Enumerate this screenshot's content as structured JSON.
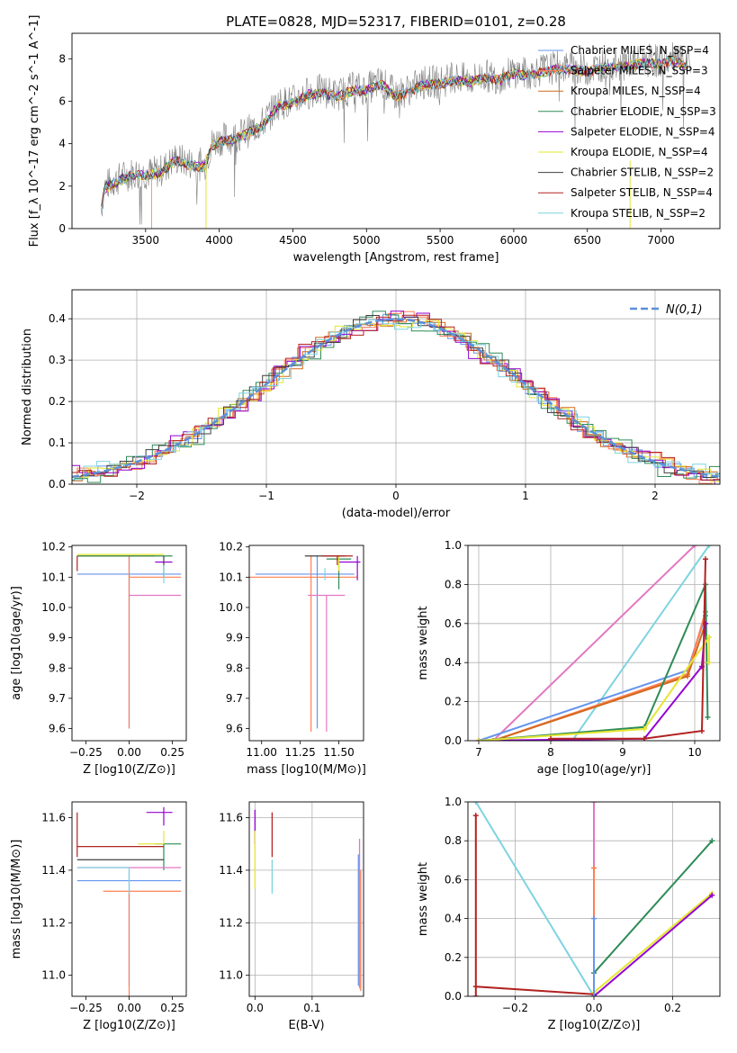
{
  "title": "PLATE=0828, MJD=52317, FIBERID=0101, z=0.28",
  "legend_colors": [
    "#6495ed",
    "#ff7f50",
    "#d2691e",
    "#2e8b57",
    "#9400d3",
    "#e6e632",
    "#404040",
    "#b22222",
    "#7ed3e0"
  ],
  "chart_data": [
    {
      "id": "spectrum",
      "type": "line",
      "xlabel": "wavelength [Angstrom, rest frame]",
      "ylabel": "Flux [f_λ 10^-17 erg cm^-2 s^-1 A^-1]",
      "xlim": [
        3000,
        7400
      ],
      "ylim": [
        0,
        9.2
      ],
      "xticks": [
        3500,
        4000,
        4500,
        5000,
        5500,
        6000,
        6500,
        7000
      ],
      "yticks": [
        0,
        2,
        4,
        6,
        8
      ],
      "data_color": "#808080",
      "data_points": [
        [
          3200,
          1.0
        ],
        [
          3220,
          2.0
        ],
        [
          3300,
          2.3
        ],
        [
          3400,
          2.6
        ],
        [
          3500,
          2.6
        ],
        [
          3600,
          2.7
        ],
        [
          3700,
          3.3
        ],
        [
          3800,
          3.1
        ],
        [
          3900,
          3.0
        ],
        [
          3950,
          4.0
        ],
        [
          4000,
          4.2
        ],
        [
          4100,
          4.3
        ],
        [
          4200,
          4.6
        ],
        [
          4300,
          5.0
        ],
        [
          4400,
          5.9
        ],
        [
          4500,
          6.0
        ],
        [
          4600,
          6.4
        ],
        [
          4700,
          6.5
        ],
        [
          4800,
          6.3
        ],
        [
          4900,
          6.6
        ],
        [
          5000,
          6.6
        ],
        [
          5100,
          6.9
        ],
        [
          5200,
          6.3
        ],
        [
          5300,
          6.6
        ],
        [
          5400,
          6.9
        ],
        [
          5500,
          6.9
        ],
        [
          5600,
          7.1
        ],
        [
          5700,
          7.0
        ],
        [
          5800,
          7.2
        ],
        [
          5900,
          7.1
        ],
        [
          6000,
          7.4
        ],
        [
          6100,
          7.3
        ],
        [
          6200,
          7.5
        ],
        [
          6300,
          7.6
        ],
        [
          6400,
          7.6
        ],
        [
          6500,
          7.5
        ],
        [
          6600,
          7.7
        ],
        [
          6700,
          7.7
        ],
        [
          6800,
          7.8
        ],
        [
          6900,
          7.9
        ],
        [
          7000,
          7.9
        ],
        [
          7100,
          8.0
        ],
        [
          7200,
          7.7
        ]
      ],
      "series": [
        {
          "name": "Chabrier MILES, N_SSP=4",
          "color": "#6495ed"
        },
        {
          "name": "Salpeter MILES, N_SSP=3",
          "color": "#ff7f50"
        },
        {
          "name": "Kroupa MILES, N_SSP=4",
          "color": "#d2691e"
        },
        {
          "name": "Chabrier ELODIE, N_SSP=3",
          "color": "#2e8b57"
        },
        {
          "name": "Salpeter ELODIE, N_SSP=4",
          "color": "#9400d3"
        },
        {
          "name": "Kroupa ELODIE, N_SSP=4",
          "color": "#e6e632"
        },
        {
          "name": "Chabrier STELIB, N_SSP=2",
          "color": "#404040"
        },
        {
          "name": "Salpeter STELIB, N_SSP=4",
          "color": "#b22222"
        },
        {
          "name": "Kroupa STELIB, N_SSP=2",
          "color": "#7ed3e0"
        }
      ]
    },
    {
      "id": "residuals",
      "type": "line",
      "xlabel": "(data-model)/error",
      "ylabel": "Normed distribution",
      "xlim": [
        -2.5,
        2.5
      ],
      "ylim": [
        0,
        0.47
      ],
      "xticks": [
        -2,
        -1,
        0,
        1,
        2
      ],
      "yticks": [
        0.0,
        0.1,
        0.2,
        0.3,
        0.4
      ],
      "grid": true,
      "legend": "N(0,1)",
      "legend_position": "top-right",
      "bin_width": 0.1,
      "hist_offsets": [
        0.0,
        0.012,
        -0.01,
        0.018,
        -0.016,
        0.007,
        -0.006,
        0.014,
        -0.013
      ],
      "hist_phases": [
        0.0,
        0.04,
        0.08,
        0.02,
        0.06,
        0.03,
        0.07,
        0.05,
        0.09
      ]
    },
    {
      "id": "age-vs-Z",
      "type": "scatter",
      "xlabel": "Z [log10(Z/Z⊙)]",
      "ylabel": "age  [log10(age/yr)]",
      "xlim": [
        -0.33,
        0.33
      ],
      "ylim": [
        9.56,
        10.205
      ],
      "xticks": [
        -0.25,
        0.0,
        0.25
      ],
      "yticks": [
        9.6,
        9.7,
        9.8,
        9.9,
        10.0,
        10.1,
        10.2
      ],
      "points": [
        {
          "x": 0.0,
          "y": 10.11,
          "xerr": [
            0.3,
            0.3
          ],
          "yerr": [
            0.51,
            0.06
          ],
          "color": "#6495ed"
        },
        {
          "x": 0.0,
          "y": 10.1,
          "xerr": [
            0.0,
            0.3
          ],
          "yerr": [
            0.5,
            0.07
          ],
          "color": "#ff7f50"
        },
        {
          "x": -0.1,
          "y": 10.17,
          "xerr": [
            0.2,
            0.25
          ],
          "yerr": [
            0.0,
            0.0
          ],
          "color": "#d2691e"
        },
        {
          "x": 0.0,
          "y": 10.17,
          "xerr": [
            0.3,
            0.25
          ],
          "yerr": [
            0.0,
            0.0
          ],
          "color": "#2e8b57"
        },
        {
          "x": 0.2,
          "y": 10.15,
          "xerr": [
            0.05,
            0.05
          ],
          "yerr": [
            0.0,
            0.0
          ],
          "color": "#9400d3"
        },
        {
          "x": 0.0,
          "y": 10.175,
          "xerr": [
            0.3,
            0.2
          ],
          "yerr": [
            0.0,
            0.0
          ],
          "color": "#e6e632"
        },
        {
          "x": 0.2,
          "y": 10.1,
          "xerr": [
            0.0,
            0.0
          ],
          "yerr": [
            0.0,
            0.07
          ],
          "color": "#404040"
        },
        {
          "x": -0.3,
          "y": 10.17,
          "xerr": [
            0.0,
            0.0
          ],
          "yerr": [
            0.05,
            0.0
          ],
          "color": "#b22222"
        },
        {
          "x": 0.0,
          "y": 10.04,
          "xerr": [
            0.0,
            0.3
          ],
          "yerr": [
            0.0,
            0.0
          ],
          "color": "#e377c2"
        },
        {
          "x": 0.2,
          "y": 10.11,
          "xerr": [
            0.0,
            0.0
          ],
          "yerr": [
            0.03,
            0.03
          ],
          "color": "#7ed3e0"
        }
      ]
    },
    {
      "id": "age-vs-mass",
      "type": "scatter",
      "xlabel": "mass [log10(M/M⊙)]",
      "ylabel": "",
      "xlim": [
        10.92,
        11.66
      ],
      "ylim": [
        9.56,
        10.205
      ],
      "xticks": [
        11.0,
        11.25,
        11.5
      ],
      "yticks": [
        9.6,
        9.7,
        9.8,
        9.9,
        10.0,
        10.1,
        10.2
      ],
      "points": [
        {
          "x": 11.36,
          "y": 10.11,
          "xerr": [
            0.4,
            0.24
          ],
          "yerr": [
            0.51,
            0.06
          ],
          "color": "#6495ed"
        },
        {
          "x": 11.32,
          "y": 10.1,
          "xerr": [
            0.4,
            0.3
          ],
          "yerr": [
            0.51,
            0.07
          ],
          "color": "#ff7f50"
        },
        {
          "x": 11.5,
          "y": 10.16,
          "xerr": [
            0.08,
            0.08
          ],
          "yerr": [
            0.1,
            0.0
          ],
          "color": "#2e8b57"
        },
        {
          "x": 11.62,
          "y": 10.15,
          "xerr": [
            0.12,
            0.02
          ],
          "yerr": [
            0.06,
            0.02
          ],
          "color": "#9400d3"
        },
        {
          "x": 11.5,
          "y": 10.17,
          "xerr": [
            0.05,
            0.05
          ],
          "yerr": [
            0.05,
            0.0
          ],
          "color": "#e6e632"
        },
        {
          "x": 11.44,
          "y": 10.17,
          "xerr": [
            0.16,
            0.1
          ],
          "yerr": [
            0.0,
            0.0
          ],
          "color": "#404040"
        },
        {
          "x": 11.49,
          "y": 10.17,
          "xerr": [
            0.1,
            0.1
          ],
          "yerr": [
            0.03,
            0.0
          ],
          "color": "#b22222"
        },
        {
          "x": 11.42,
          "y": 10.04,
          "xerr": [
            0.12,
            0.12
          ],
          "yerr": [
            0.45,
            0.0
          ],
          "color": "#e377c2"
        },
        {
          "x": 11.41,
          "y": 10.11,
          "xerr": [
            0.0,
            0.0
          ],
          "yerr": [
            0.02,
            0.02
          ],
          "color": "#7ed3e0"
        }
      ]
    },
    {
      "id": "weight-vs-age",
      "type": "line",
      "xlabel": "age  [log10(age/yr)]",
      "ylabel": "mass weight",
      "xlim": [
        6.85,
        10.35
      ],
      "ylim": [
        0,
        1.0
      ],
      "xticks": [
        7,
        8,
        9,
        10
      ],
      "yticks": [
        0.0,
        0.2,
        0.4,
        0.6,
        0.8,
        1.0
      ],
      "grid": true,
      "lines": [
        {
          "color": "#e377c2",
          "pts": [
            [
              7.2,
              0.0
            ],
            [
              10.0,
              1.0
            ]
          ]
        },
        {
          "color": "#7ed3e0",
          "pts": [
            [
              8.3,
              0.0
            ],
            [
              10.2,
              1.0
            ]
          ]
        },
        {
          "color": "#6495ed",
          "pts": [
            [
              7.0,
              0.0
            ],
            [
              9.9,
              0.36
            ],
            [
              10.15,
              0.64
            ]
          ]
        },
        {
          "color": "#ff7f50",
          "pts": [
            [
              7.2,
              0.0
            ],
            [
              9.9,
              0.34
            ],
            [
              10.15,
              0.66
            ]
          ]
        },
        {
          "color": "#d2691e",
          "pts": [
            [
              7.2,
              0.0
            ],
            [
              9.9,
              0.33
            ],
            [
              10.15,
              0.6
            ]
          ]
        },
        {
          "color": "#2e8b57",
          "pts": [
            [
              7.0,
              0.0
            ],
            [
              9.3,
              0.07
            ],
            [
              10.15,
              0.8
            ],
            [
              10.18,
              0.12
            ]
          ]
        },
        {
          "color": "#9400d3",
          "pts": [
            [
              7.0,
              0.0
            ],
            [
              9.3,
              0.01
            ],
            [
              10.1,
              0.38
            ],
            [
              10.15,
              0.6
            ]
          ]
        },
        {
          "color": "#e6e632",
          "pts": [
            [
              7.0,
              0.0
            ],
            [
              9.3,
              0.06
            ],
            [
              10.2,
              0.53
            ],
            [
              10.2,
              0.4
            ]
          ]
        },
        {
          "color": "#b22222",
          "pts": [
            [
              8.0,
              0.01
            ],
            [
              9.3,
              0.01
            ],
            [
              10.1,
              0.05
            ],
            [
              10.15,
              0.93
            ]
          ]
        }
      ]
    },
    {
      "id": "mass-vs-Z",
      "type": "scatter",
      "xlabel": "Z [log10(Z/Z⊙)]",
      "ylabel": "mass [log10(M/M⊙)]",
      "xlim": [
        -0.33,
        0.33
      ],
      "ylim": [
        10.92,
        11.66
      ],
      "xticks": [
        -0.25,
        0.0,
        0.25
      ],
      "yticks": [
        11.0,
        11.2,
        11.4,
        11.6
      ],
      "points": [
        {
          "x": 0.0,
          "y": 11.36,
          "xerr": [
            0.3,
            0.3
          ],
          "yerr": [
            0.4,
            0.04
          ],
          "color": "#6495ed"
        },
        {
          "x": 0.0,
          "y": 11.32,
          "xerr": [
            0.15,
            0.3
          ],
          "yerr": [
            0.4,
            0.0
          ],
          "color": "#ff7f50"
        },
        {
          "x": 0.2,
          "y": 11.5,
          "xerr": [
            0.05,
            0.1
          ],
          "yerr": [
            0.1,
            0.0
          ],
          "color": "#2e8b57"
        },
        {
          "x": 0.2,
          "y": 11.62,
          "xerr": [
            0.1,
            0.05
          ],
          "yerr": [
            0.05,
            0.02
          ],
          "color": "#9400d3"
        },
        {
          "x": 0.2,
          "y": 11.5,
          "xerr": [
            0.15,
            0.0
          ],
          "yerr": [
            0.0,
            0.05
          ],
          "color": "#e6e632"
        },
        {
          "x": 0.0,
          "y": 11.44,
          "xerr": [
            0.3,
            0.2
          ],
          "yerr": [
            0.0,
            0.0
          ],
          "color": "#404040"
        },
        {
          "x": -0.3,
          "y": 11.49,
          "xerr": [
            0.0,
            0.5
          ],
          "yerr": [
            0.04,
            0.13
          ],
          "color": "#b22222"
        },
        {
          "x": 0.0,
          "y": 11.41,
          "xerr": [
            0.3,
            0.3
          ],
          "yerr": [
            0.0,
            0.0
          ],
          "color": "#e377c2"
        },
        {
          "x": 0.0,
          "y": 11.41,
          "xerr": [
            0.3,
            0.0
          ],
          "yerr": [
            0.1,
            0.0
          ],
          "color": "#7ed3e0"
        }
      ]
    },
    {
      "id": "mass-vs-EBV",
      "type": "scatter",
      "xlabel": "E(B-V)",
      "ylabel": "",
      "xlim": [
        -0.01,
        0.19
      ],
      "ylim": [
        10.92,
        11.66
      ],
      "xticks": [
        0.0,
        0.1
      ],
      "yticks": [
        11.0,
        11.2,
        11.4,
        11.6
      ],
      "grid": true,
      "vlines": [
        {
          "x": 0.0,
          "y0": 11.5,
          "y1": 11.63,
          "color": "#9400d3"
        },
        {
          "x": 0.0,
          "y0": 11.33,
          "y1": 11.55,
          "color": "#e6e632"
        },
        {
          "x": 0.03,
          "y0": 11.45,
          "y1": 11.62,
          "color": "#b22222"
        },
        {
          "x": 0.03,
          "y0": 11.31,
          "y1": 11.44,
          "color": "#7ed3e0"
        },
        {
          "x": 0.181,
          "y0": 10.96,
          "y1": 11.46,
          "color": "#6495ed"
        },
        {
          "x": 0.183,
          "y0": 10.95,
          "y1": 11.52,
          "color": "#e377c2"
        },
        {
          "x": 0.185,
          "y0": 10.94,
          "y1": 11.4,
          "color": "#ff7f50"
        }
      ]
    },
    {
      "id": "weight-vs-Z",
      "type": "line",
      "xlabel": "Z [log10(Z/Z⊙)]",
      "ylabel": "mass weight",
      "xlim": [
        -0.32,
        0.32
      ],
      "ylim": [
        0,
        1.0
      ],
      "xticks": [
        -0.2,
        0.0,
        0.2
      ],
      "yticks": [
        0.0,
        0.2,
        0.4,
        0.6,
        0.8,
        1.0
      ],
      "grid": true,
      "lines": [
        {
          "color": "#7ed3e0",
          "pts": [
            [
              -0.3,
              1.0
            ],
            [
              0.0,
              0.0
            ]
          ]
        },
        {
          "color": "#b22222",
          "pts": [
            [
              -0.3,
              0.93
            ],
            [
              -0.3,
              0.0
            ],
            [
              -0.3,
              0.05
            ],
            [
              0.0,
              0.01
            ]
          ]
        },
        {
          "color": "#e377c2",
          "pts": [
            [
              0.0,
              1.0
            ],
            [
              0.0,
              0.0
            ]
          ]
        },
        {
          "color": "#ff7f50",
          "pts": [
            [
              0.0,
              0.66
            ],
            [
              0.0,
              0.0
            ]
          ]
        },
        {
          "color": "#2e8b57",
          "pts": [
            [
              0.0,
              0.12
            ],
            [
              0.3,
              0.8
            ]
          ]
        },
        {
          "color": "#e6e632",
          "pts": [
            [
              0.0,
              0.02
            ],
            [
              0.3,
              0.53
            ]
          ]
        },
        {
          "color": "#9400d3",
          "pts": [
            [
              0.0,
              0.0
            ],
            [
              0.3,
              0.52
            ]
          ]
        },
        {
          "color": "#6495ed",
          "pts": [
            [
              0.0,
              0.4
            ],
            [
              0.0,
              0.0
            ]
          ]
        }
      ]
    }
  ]
}
